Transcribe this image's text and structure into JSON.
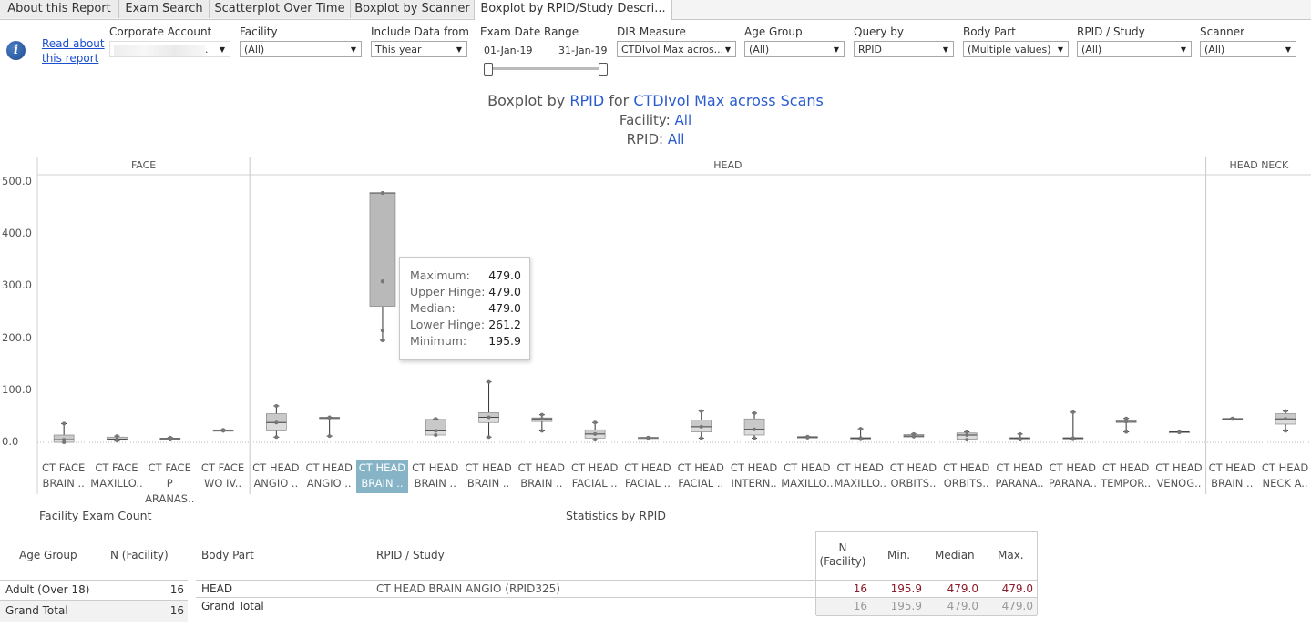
{
  "tabs": [
    {
      "label": "About this Report"
    },
    {
      "label": "Exam Search"
    },
    {
      "label": "Scatterplot Over Time"
    },
    {
      "label": "Boxplot by Scanner"
    },
    {
      "label": "Boxplot by RPID/Study Descri..."
    }
  ],
  "info": {
    "link_line1": "Read about",
    "link_line2": "this report"
  },
  "filters": {
    "corporate_account": {
      "label": "Corporate Account",
      "value": "."
    },
    "facility": {
      "label": "Facility",
      "value": "(All)"
    },
    "include_data_from": {
      "label": "Include Data from",
      "value": "This year"
    },
    "exam_date_range": {
      "label": "Exam Date Range",
      "start": "01-Jan-19",
      "end": "31-Jan-19"
    },
    "dir_measure": {
      "label": "DIR Measure",
      "value": "CTDIvol Max acros..."
    },
    "age_group": {
      "label": "Age Group",
      "value": "(All)"
    },
    "query_by": {
      "label": "Query by",
      "value": "RPID"
    },
    "body_part": {
      "label": "Body Part",
      "value": "(Multiple values)"
    },
    "rpid_study": {
      "label": "RPID / Study",
      "value": "(All)"
    },
    "scanner": {
      "label": "Scanner",
      "value": "(All)"
    }
  },
  "title": {
    "prefix": "Boxplot by ",
    "rpid": "RPID",
    "for": " for ",
    "measure": "CTDIvol Max across Scans",
    "facility_label": "Facility: ",
    "facility_value": "All",
    "rpid_label": "RPID: ",
    "rpid_value": "All"
  },
  "chart_data": {
    "type": "boxplot",
    "ylim": [
      -50,
      510
    ],
    "yticks": [
      "500.0",
      "400.0",
      "300.0",
      "200.0",
      "100.0",
      "0.0"
    ],
    "yticks_values": [
      500,
      400,
      300,
      200,
      100,
      0
    ],
    "panels": [
      {
        "name": "FACE",
        "count": 4
      },
      {
        "name": "HEAD",
        "count": 18
      },
      {
        "name": "HEAD NECK",
        "count": 2
      }
    ],
    "categories": [
      {
        "l1": "CT FACE",
        "l2": "BRAIN ..",
        "min": 0,
        "q1": 0,
        "med": 5,
        "q3": 14,
        "max": 36
      },
      {
        "l1": "CT FACE",
        "l2": "MAXILLO..",
        "min": 3,
        "q1": 4,
        "med": 6,
        "q3": 10,
        "max": 12
      },
      {
        "l1": "CT FACE P",
        "l2": "ARANAS..",
        "min": 5,
        "q1": 6,
        "med": 7,
        "q3": 8,
        "max": 9
      },
      {
        "l1": "CT FACE",
        "l2": "WO IV..",
        "min": 22,
        "q1": 22,
        "med": 23,
        "q3": 24,
        "max": 24
      },
      {
        "l1": "CT HEAD",
        "l2": "ANGIO ..",
        "min": 10,
        "q1": 22,
        "med": 38,
        "q3": 55,
        "max": 70
      },
      {
        "l1": "CT HEAD",
        "l2": "ANGIO ..",
        "min": 12,
        "q1": 47,
        "med": 47,
        "q3": 48,
        "max": 48
      },
      {
        "l1": "CT HEAD",
        "l2": "BRAIN ..",
        "min": 195.9,
        "q1": 261.2,
        "med": 479,
        "q3": 479,
        "max": 479
      },
      {
        "l1": "CT HEAD",
        "l2": "BRAIN ..",
        "min": 14,
        "q1": 14,
        "med": 22,
        "q3": 44,
        "max": 45
      },
      {
        "l1": "CT HEAD",
        "l2": "BRAIN ..",
        "min": 10,
        "q1": 38,
        "med": 48,
        "q3": 57,
        "max": 116
      },
      {
        "l1": "CT HEAD",
        "l2": "BRAIN ..",
        "min": 22,
        "q1": 40,
        "med": 45,
        "q3": 47,
        "max": 53
      },
      {
        "l1": "CT HEAD",
        "l2": "FACIAL ..",
        "min": 5,
        "q1": 8,
        "med": 16,
        "q3": 24,
        "max": 38
      },
      {
        "l1": "CT HEAD",
        "l2": "FACIAL ..",
        "min": 8,
        "q1": 8,
        "med": 9,
        "q3": 9,
        "max": 9
      },
      {
        "l1": "CT HEAD",
        "l2": "FACIAL ..",
        "min": 8,
        "q1": 20,
        "med": 30,
        "q3": 43,
        "max": 60
      },
      {
        "l1": "CT HEAD",
        "l2": "INTERN..",
        "min": 8,
        "q1": 14,
        "med": 25,
        "q3": 45,
        "max": 56
      },
      {
        "l1": "CT HEAD",
        "l2": "MAXILLO..",
        "min": 9,
        "q1": 9,
        "med": 10,
        "q3": 11,
        "max": 11
      },
      {
        "l1": "CT HEAD",
        "l2": "MAXILLO..",
        "min": 6,
        "q1": 7,
        "med": 8,
        "q3": 9,
        "max": 26
      },
      {
        "l1": "CT HEAD",
        "l2": "ORBITS..",
        "min": 11,
        "q1": 11,
        "med": 12,
        "q3": 15,
        "max": 16
      },
      {
        "l1": "CT HEAD",
        "l2": "ORBITS..",
        "min": 5,
        "q1": 6,
        "med": 14,
        "q3": 18,
        "max": 20
      },
      {
        "l1": "CT HEAD",
        "l2": "PARANA..",
        "min": 5,
        "q1": 7,
        "med": 8,
        "q3": 9,
        "max": 16
      },
      {
        "l1": "CT HEAD",
        "l2": "PARANA..",
        "min": 6,
        "q1": 7,
        "med": 8,
        "q3": 9,
        "max": 58
      },
      {
        "l1": "CT HEAD",
        "l2": "TEMPOR..",
        "min": 20,
        "q1": 38,
        "med": 40,
        "q3": 43,
        "max": 46
      },
      {
        "l1": "CT HEAD",
        "l2": "VENOG..",
        "min": 19,
        "q1": 19,
        "med": 20,
        "q3": 20,
        "max": 20
      },
      {
        "l1": "CT HEAD",
        "l2": "BRAIN ..",
        "min": 45,
        "q1": 45,
        "med": 45,
        "q3": 46,
        "max": 46
      },
      {
        "l1": "CT HEAD",
        "l2": "NECK A..",
        "min": 22,
        "q1": 35,
        "med": 45,
        "q3": 55,
        "max": 60
      }
    ],
    "selected_index": 6,
    "outliers": [
      {
        "cat": 6,
        "value": 309
      },
      {
        "cat": 6,
        "value": 215
      }
    ]
  },
  "tooltip": {
    "rows": [
      {
        "k": "Maximum:",
        "v": "479.0"
      },
      {
        "k": "Upper Hinge:",
        "v": "479.0"
      },
      {
        "k": "Median:",
        "v": "479.0"
      },
      {
        "k": "Lower Hinge:",
        "v": "261.2"
      },
      {
        "k": "Minimum:",
        "v": "195.9"
      }
    ]
  },
  "facility_table": {
    "title": "Facility Exam Count",
    "col1": "Age Group",
    "col2": "N (Facility)",
    "rows": [
      {
        "group": "Adult (Over 18)",
        "n": "16"
      }
    ],
    "total": {
      "label": "Grand Total",
      "n": "16"
    }
  },
  "stats_table": {
    "title": "Statistics by RPID",
    "col_body": "Body Part",
    "col_rpid": "RPID / Study",
    "col_n_1": "N",
    "col_n_2": "(Facility)",
    "col_min": "Min.",
    "col_median": "Median",
    "col_max": "Max.",
    "row": {
      "body": "HEAD",
      "rpid": "CT HEAD BRAIN ANGIO (RPID325)",
      "n": "16",
      "min": "195.9",
      "median": "479.0",
      "max": "479.0"
    },
    "total": {
      "label": "Grand Total",
      "n": "16",
      "min": "195.9",
      "median": "479.0",
      "max": "479.0"
    }
  }
}
